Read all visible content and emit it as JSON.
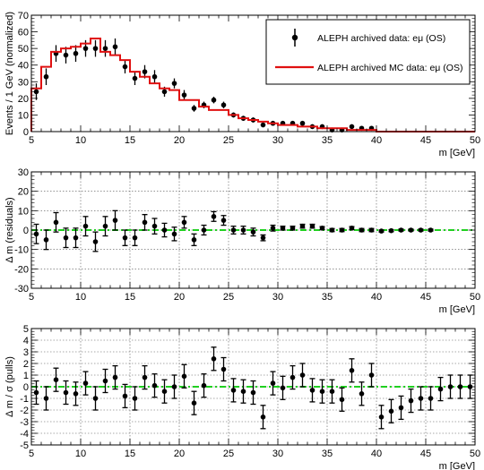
{
  "chart_data": [
    {
      "type": "scatter",
      "panel": "distribution",
      "xlabel": "m [GeV]",
      "ylabel": "Events / 1 GeV (normalized)",
      "xlim": [
        5,
        50
      ],
      "ylim": [
        0,
        70
      ],
      "xticks": [
        5,
        10,
        15,
        20,
        25,
        30,
        35,
        40,
        45,
        50
      ],
      "yticks": [
        0,
        10,
        20,
        30,
        40,
        50,
        60,
        70
      ],
      "grid": false,
      "legend_position": "top-right",
      "legend": [
        "ALEPH archived data: eμ (OS)",
        "ALEPH archived MC data: eμ (OS)"
      ],
      "colors": {
        "data": "#000000",
        "mc": "#e01010"
      },
      "series": [
        {
          "name": "ALEPH archived data: eμ (OS)",
          "kind": "points",
          "x": [
            5.5,
            6.5,
            7.5,
            8.5,
            9.5,
            10.5,
            11.5,
            12.5,
            13.5,
            14.5,
            15.5,
            16.5,
            17.5,
            18.5,
            19.5,
            20.5,
            21.5,
            22.5,
            23.5,
            24.5,
            25.5,
            26.5,
            27.5,
            28.5,
            29.5,
            30.5,
            31.5,
            32.5,
            33.5,
            34.5,
            35.5,
            36.5,
            37.5,
            38.5,
            39.5
          ],
          "y": [
            24,
            33,
            47,
            46,
            47,
            50,
            50,
            50,
            51,
            39,
            32,
            36,
            33,
            24,
            29,
            22,
            14,
            16,
            19,
            16,
            10,
            8,
            7,
            4,
            5,
            5,
            5,
            5,
            3,
            3,
            1,
            1,
            3,
            2,
            2
          ],
          "yerr": [
            5,
            5,
            5,
            5,
            5,
            5,
            5,
            5,
            5,
            4,
            4,
            4,
            4,
            3,
            3,
            3,
            2,
            2,
            2,
            2,
            1.5,
            1.5,
            1.5,
            1,
            1,
            1,
            1,
            1,
            1,
            1,
            1,
            1,
            1,
            1,
            1
          ]
        },
        {
          "name": "ALEPH archived MC data: eμ (OS)",
          "kind": "step",
          "bin_edges": [
            5,
            6,
            7,
            8,
            9,
            10,
            11,
            12,
            13,
            14,
            15,
            16,
            17,
            18,
            19,
            20,
            21,
            22,
            23,
            24,
            25,
            26,
            27,
            28,
            29,
            30,
            31,
            32,
            33,
            34,
            35,
            36,
            37,
            38,
            39,
            40,
            50
          ],
          "values": [
            26,
            39,
            48,
            50,
            51,
            53,
            56,
            48,
            46,
            43,
            36,
            33,
            29,
            26,
            25,
            19,
            19,
            15,
            13,
            13,
            10,
            8,
            7,
            6,
            5,
            4,
            4,
            3,
            3,
            2,
            2,
            2,
            1,
            1,
            1,
            0
          ]
        }
      ]
    },
    {
      "type": "scatter",
      "panel": "residuals",
      "xlabel": "m [GeV]",
      "ylabel": "Δ m (residuals)",
      "xlim": [
        5,
        50
      ],
      "ylim": [
        -30,
        30
      ],
      "xticks": [
        5,
        10,
        15,
        20,
        25,
        30,
        35,
        40,
        45,
        50
      ],
      "yticks": [
        -30,
        -20,
        -10,
        0,
        10,
        20,
        30
      ],
      "grid": true,
      "reference_line": {
        "y": 0,
        "color": "#20d020",
        "style": "dash-dot"
      },
      "series": [
        {
          "kind": "points",
          "x": [
            5.5,
            6.5,
            7.5,
            8.5,
            9.5,
            10.5,
            11.5,
            12.5,
            13.5,
            14.5,
            15.5,
            16.5,
            17.5,
            18.5,
            19.5,
            20.5,
            21.5,
            22.5,
            23.5,
            24.5,
            25.5,
            26.5,
            27.5,
            28.5,
            29.5,
            30.5,
            31.5,
            32.5,
            33.5,
            34.5,
            35.5,
            36.5,
            37.5,
            38.5,
            39.5,
            40.5,
            41.5,
            42.5,
            43.5,
            44.5,
            45.5
          ],
          "y": [
            -2,
            -5,
            4,
            -4,
            -4,
            2,
            -6,
            2,
            5,
            -4,
            -4,
            4,
            2,
            0,
            -2,
            4,
            -5,
            0,
            7,
            5,
            0,
            0,
            -1,
            -4,
            1,
            1,
            1,
            2,
            2,
            1,
            0,
            0,
            1,
            0,
            0,
            -0.5,
            -0.3,
            0,
            0,
            0,
            0
          ],
          "yerr": [
            5,
            5,
            5,
            5,
            5,
            5,
            5,
            5,
            5,
            4,
            4,
            4,
            4,
            3.5,
            3.5,
            3,
            3,
            2.5,
            2.5,
            2.5,
            2,
            2,
            2,
            1.5,
            1.5,
            1,
            1,
            1,
            1,
            0.8,
            0.8,
            0.8,
            0.8,
            0.8,
            0.8,
            0.5,
            0.5,
            0.5,
            0.5,
            0.5,
            0.5
          ]
        }
      ]
    },
    {
      "type": "scatter",
      "panel": "pulls",
      "xlabel": "m [GeV]",
      "ylabel": "Δ m / σ (pulls)",
      "xlim": [
        5,
        50
      ],
      "ylim": [
        -5,
        5
      ],
      "xticks": [
        5,
        10,
        15,
        20,
        25,
        30,
        35,
        40,
        45,
        50
      ],
      "yticks": [
        -5,
        -4,
        -3,
        -2,
        -1,
        0,
        1,
        2,
        3,
        4,
        5
      ],
      "grid": true,
      "reference_line": {
        "y": 0,
        "color": "#20d020",
        "style": "dash-dot"
      },
      "series": [
        {
          "kind": "points",
          "x": [
            5.5,
            6.5,
            7.5,
            8.5,
            9.5,
            10.5,
            11.5,
            12.5,
            13.5,
            14.5,
            15.5,
            16.5,
            17.5,
            18.5,
            19.5,
            20.5,
            21.5,
            22.5,
            23.5,
            24.5,
            25.5,
            26.5,
            27.5,
            28.5,
            29.5,
            30.5,
            31.5,
            32.5,
            33.5,
            34.5,
            35.5,
            36.5,
            37.5,
            38.5,
            39.5,
            40.5,
            41.5,
            42.5,
            43.5,
            44.5,
            45.5,
            46.5,
            47.5,
            48.5,
            49.5
          ],
          "y": [
            -0.5,
            -1.0,
            0.6,
            -0.5,
            -0.6,
            0.3,
            -1.0,
            0.5,
            0.8,
            -0.8,
            -1.0,
            0.8,
            0.1,
            -0.4,
            0.0,
            0.9,
            -1.4,
            0.1,
            2.4,
            1.5,
            -0.3,
            -0.4,
            -0.5,
            -2.6,
            0.3,
            -0.1,
            0.8,
            1.0,
            -0.3,
            -0.4,
            -0.4,
            -1.1,
            1.4,
            -0.6,
            1.0,
            -2.6,
            -2.1,
            -1.8,
            -1.2,
            -1.0,
            -1.0,
            -0.2,
            0.0,
            0.0,
            0.0
          ],
          "yerr": [
            1,
            1,
            1,
            1,
            1,
            1,
            1,
            1,
            1,
            1,
            1,
            1,
            1,
            1,
            1,
            1,
            1,
            1,
            1,
            1,
            1,
            1,
            1,
            1,
            1,
            1,
            1,
            1,
            1,
            1,
            1,
            1,
            1,
            1,
            1,
            1,
            1,
            1,
            1,
            1,
            1,
            1,
            1,
            1,
            1
          ]
        }
      ]
    }
  ]
}
